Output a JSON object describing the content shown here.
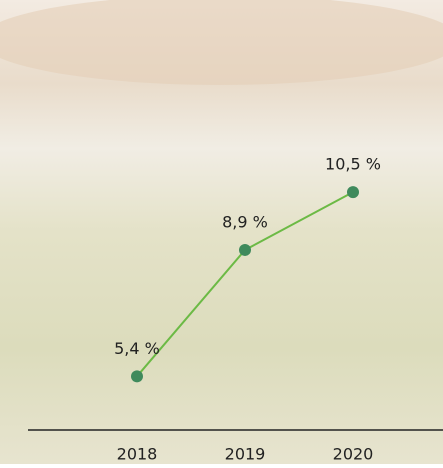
{
  "chart_data": {
    "type": "line",
    "categories": [
      "2018",
      "2019",
      "2020"
    ],
    "series": [
      {
        "color": "#6cba45",
        "marker_color": "#3f8a5c",
        "values": [
          5.4,
          8.9,
          10.5
        ],
        "value_labels": [
          "5,4 %",
          "8,9 %",
          "10,5 %"
        ]
      }
    ],
    "ylim": [
      3,
      12
    ]
  }
}
